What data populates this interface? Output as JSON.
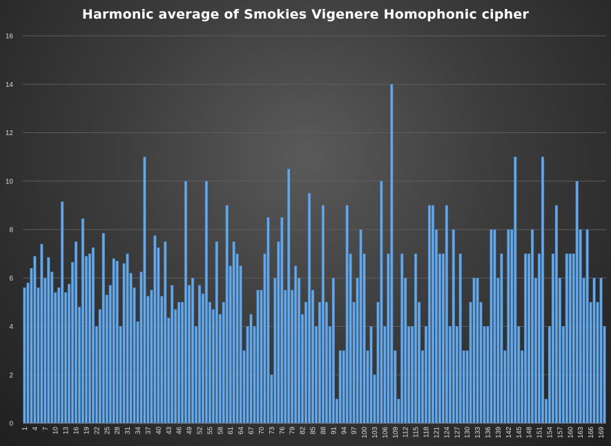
{
  "chart_data": {
    "type": "bar",
    "title": "Harmonic average of Smokies Vigenere Homophonic cipher",
    "xlabel": "",
    "ylabel": "",
    "ylim": [
      0,
      16
    ],
    "yticks": [
      0,
      2,
      4,
      6,
      8,
      10,
      12,
      14,
      16
    ],
    "x_start": 1,
    "x_end": 170,
    "x_tick_step": 3,
    "grid": true,
    "legend": "none",
    "bar_color": "#6aa8e4",
    "bar_edge_color": "#3f7fc0",
    "values": [
      5.6,
      5.8,
      6.4,
      6.9,
      5.6,
      7.4,
      6.0,
      6.85,
      6.25,
      5.4,
      5.6,
      9.15,
      5.4,
      5.75,
      6.65,
      7.5,
      4.8,
      8.45,
      6.9,
      7.0,
      7.25,
      4.0,
      4.7,
      7.85,
      5.3,
      5.7,
      6.8,
      6.7,
      4.0,
      6.6,
      7.0,
      6.2,
      5.6,
      4.2,
      6.25,
      11.0,
      5.25,
      5.5,
      7.75,
      7.25,
      5.25,
      7.5,
      4.35,
      5.7,
      4.7,
      5.0,
      5.0,
      10.0,
      5.7,
      6.0,
      4.0,
      5.7,
      5.35,
      10.0,
      5.0,
      4.7,
      7.5,
      4.5,
      5.0,
      9.0,
      6.5,
      7.5,
      7.0,
      6.5,
      3.0,
      4.0,
      4.5,
      4.0,
      5.5,
      5.5,
      7.0,
      8.5,
      2.0,
      6.0,
      7.5,
      8.5,
      5.5,
      10.5,
      5.5,
      6.5,
      6.0,
      4.5,
      5.0,
      9.5,
      5.5,
      4.0,
      5.0,
      9.0,
      5.0,
      4.0,
      6.0,
      1.0,
      3.0,
      3.0,
      9.0,
      7.0,
      5.0,
      6.0,
      8.0,
      7.0,
      3.0,
      4.0,
      2.0,
      5.0,
      10.0,
      4.0,
      7.0,
      14.0,
      3.0,
      1.0,
      7.0,
      6.0,
      4.0,
      4.0,
      7.0,
      5.0,
      3.0,
      4.0,
      9.0,
      9.0,
      8.0,
      7.0,
      7.0,
      9.0,
      4.0,
      8.0,
      4.0,
      7.0,
      3.0,
      3.0,
      5.0,
      6.0,
      6.0,
      5.0,
      4.0,
      4.0,
      8.0,
      8.0,
      6.0,
      7.0,
      3.0,
      8.0,
      8.0,
      11.0,
      4.0,
      3.0,
      7.0,
      7.0,
      8.0,
      6.0,
      7.0,
      11.0,
      1.0,
      4.0,
      7.0,
      9.0,
      6.0,
      4.0,
      7.0,
      7.0,
      7.0,
      10.0,
      8.0,
      6.0,
      8.0,
      5.0,
      6.0,
      5.0,
      6.0,
      4.0
    ]
  }
}
